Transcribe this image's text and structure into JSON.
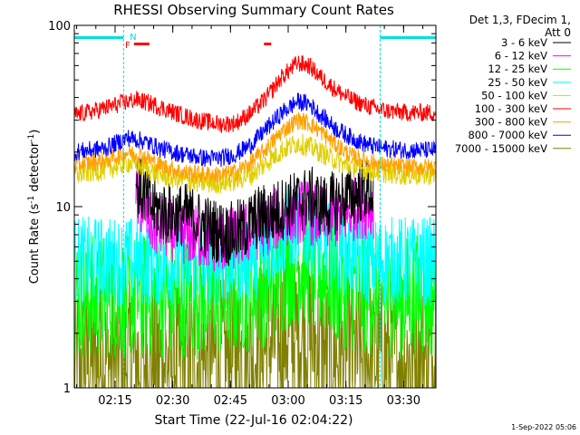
{
  "chart_data": {
    "type": "line",
    "title": "RHESSI Observing Summary Count Rates",
    "xlabel": "Start Time (22-Jul-16 02:04:22)",
    "ylabel_main": "Count Rate (s",
    "ylabel_sup": "-1",
    "ylabel_rest": " detector",
    "ylabel_sup2": "-1",
    "ylabel_end": ")",
    "yscale": "log",
    "ylim": [
      1,
      100
    ],
    "y_ticks": [
      "1",
      "10",
      "100"
    ],
    "xlim_minutes": [
      0,
      94
    ],
    "x_ticks": [
      {
        "label": "02:15",
        "minute": 10.6
      },
      {
        "label": "02:30",
        "minute": 25.6
      },
      {
        "label": "02:45",
        "minute": 40.6
      },
      {
        "label": "03:00",
        "minute": 55.6
      },
      {
        "label": "03:15",
        "minute": 70.6
      },
      {
        "label": "03:30",
        "minute": 85.6
      }
    ],
    "legend_header": [
      "Det 1,3, FDecim 1,",
      "Att 0"
    ],
    "legend_position": "right",
    "series": [
      {
        "name": "3 - 6 keV",
        "color": "#000000",
        "profile": [
          [
            16,
            13
          ],
          [
            18,
            12
          ],
          [
            20,
            10
          ],
          [
            25,
            9
          ],
          [
            30,
            9
          ],
          [
            33,
            8
          ],
          [
            36,
            7.5
          ],
          [
            40,
            7
          ],
          [
            44,
            7.5
          ],
          [
            47,
            8.5
          ],
          [
            49,
            9
          ],
          [
            51,
            9
          ],
          [
            55,
            10
          ],
          [
            60,
            11
          ],
          [
            62,
            11
          ],
          [
            65,
            10
          ],
          [
            70,
            11
          ],
          [
            74,
            12
          ],
          [
            76,
            12.5
          ],
          [
            77.8,
            12
          ]
        ]
      },
      {
        "name": "6 - 12 keV",
        "color": "#ff00ff",
        "profile": [
          [
            16,
            11
          ],
          [
            18,
            10
          ],
          [
            20,
            8
          ],
          [
            25,
            7.5
          ],
          [
            30,
            7
          ],
          [
            36,
            6.5
          ],
          [
            40,
            6.5
          ],
          [
            44,
            7
          ],
          [
            47,
            7.5
          ],
          [
            50,
            8
          ],
          [
            55,
            9
          ],
          [
            60,
            9.5
          ],
          [
            65,
            8.5
          ],
          [
            70,
            9
          ],
          [
            74,
            10
          ],
          [
            77.8,
            10
          ]
        ]
      },
      {
        "name": "12 - 25 keV",
        "color": "#00ff00",
        "profile": [
          [
            0,
            3.2
          ],
          [
            10,
            3.2
          ],
          [
            20,
            3.2
          ],
          [
            30,
            3.2
          ],
          [
            40,
            3.2
          ],
          [
            48,
            3.6
          ],
          [
            52,
            4
          ],
          [
            55,
            4.5
          ],
          [
            57,
            5
          ],
          [
            60,
            5
          ],
          [
            62,
            4.5
          ],
          [
            66,
            4
          ],
          [
            70,
            3.6
          ],
          [
            78,
            3.3
          ],
          [
            85,
            3.2
          ],
          [
            94,
            3.2
          ]
        ]
      },
      {
        "name": "25 - 50 keV",
        "color": "#00ffff",
        "profile": [
          [
            0,
            5
          ],
          [
            10,
            5
          ],
          [
            20,
            5
          ],
          [
            30,
            5
          ],
          [
            40,
            5
          ],
          [
            48,
            5.5
          ],
          [
            52,
            6.5
          ],
          [
            55,
            7.5
          ],
          [
            58,
            8
          ],
          [
            61,
            7.5
          ],
          [
            64,
            6.5
          ],
          [
            68,
            6
          ],
          [
            72,
            5.5
          ],
          [
            78,
            5
          ],
          [
            94,
            5
          ]
        ]
      },
      {
        "name": "50 - 100 keV",
        "color": "#e0d000",
        "profile": [
          [
            0,
            15
          ],
          [
            8,
            16
          ],
          [
            14,
            17.5
          ],
          [
            18,
            16.5
          ],
          [
            22,
            15
          ],
          [
            28,
            14
          ],
          [
            34,
            13.5
          ],
          [
            38,
            13.5
          ],
          [
            42,
            14
          ],
          [
            46,
            15
          ],
          [
            50,
            17.5
          ],
          [
            54,
            20.5
          ],
          [
            58,
            22.5
          ],
          [
            62,
            21
          ],
          [
            66,
            19
          ],
          [
            70,
            17
          ],
          [
            75,
            16
          ],
          [
            80,
            15.5
          ],
          [
            86,
            15
          ],
          [
            94,
            15
          ]
        ]
      },
      {
        "name": "100 - 300 keV",
        "color": "#ff0000",
        "profile": [
          [
            0,
            32
          ],
          [
            6,
            34
          ],
          [
            12,
            37
          ],
          [
            16,
            39
          ],
          [
            20,
            37
          ],
          [
            26,
            33
          ],
          [
            32,
            30
          ],
          [
            38,
            28.5
          ],
          [
            42,
            29
          ],
          [
            46,
            33
          ],
          [
            50,
            40
          ],
          [
            54,
            52
          ],
          [
            58,
            62
          ],
          [
            61,
            60
          ],
          [
            64,
            52
          ],
          [
            68,
            44
          ],
          [
            72,
            39
          ],
          [
            76,
            36
          ],
          [
            80,
            34
          ],
          [
            86,
            33
          ],
          [
            94,
            33
          ]
        ]
      },
      {
        "name": "300 - 800 keV",
        "color": "#ffa000",
        "profile": [
          [
            0,
            17
          ],
          [
            8,
            18
          ],
          [
            14,
            20
          ],
          [
            18,
            19
          ],
          [
            22,
            17
          ],
          [
            28,
            15.5
          ],
          [
            34,
            15
          ],
          [
            38,
            15
          ],
          [
            42,
            15.5
          ],
          [
            46,
            17.5
          ],
          [
            50,
            21
          ],
          [
            54,
            26
          ],
          [
            58,
            30
          ],
          [
            61,
            29
          ],
          [
            64,
            26
          ],
          [
            68,
            22
          ],
          [
            72,
            19
          ],
          [
            76,
            18
          ],
          [
            80,
            17
          ],
          [
            86,
            16.5
          ],
          [
            94,
            16.5
          ]
        ]
      },
      {
        "name": "800 - 7000 keV",
        "color": "#0000ff",
        "profile": [
          [
            0,
            20
          ],
          [
            8,
            21
          ],
          [
            14,
            24
          ],
          [
            18,
            23
          ],
          [
            22,
            21
          ],
          [
            28,
            19.5
          ],
          [
            34,
            18.5
          ],
          [
            38,
            18.5
          ],
          [
            42,
            19.5
          ],
          [
            46,
            22
          ],
          [
            50,
            27
          ],
          [
            54,
            33
          ],
          [
            58,
            38
          ],
          [
            61,
            37
          ],
          [
            64,
            32
          ],
          [
            68,
            27
          ],
          [
            72,
            24
          ],
          [
            76,
            22
          ],
          [
            80,
            21
          ],
          [
            86,
            20.5
          ],
          [
            94,
            20.5
          ]
        ]
      },
      {
        "name": "7000 - 15000 keV",
        "color": "#808000",
        "profile": [
          [
            0,
            1.4
          ],
          [
            30,
            1.4
          ],
          [
            45,
            1.5
          ],
          [
            50,
            1.7
          ],
          [
            55,
            2
          ],
          [
            60,
            2
          ],
          [
            65,
            1.6
          ],
          [
            70,
            1.5
          ],
          [
            94,
            1.4
          ]
        ]
      }
    ],
    "annotations": [
      {
        "text": "F",
        "color": "#ff0000"
      },
      {
        "text": "N",
        "color": "#00e0e0"
      }
    ],
    "footer": "1-Sep-2022 05:06"
  }
}
